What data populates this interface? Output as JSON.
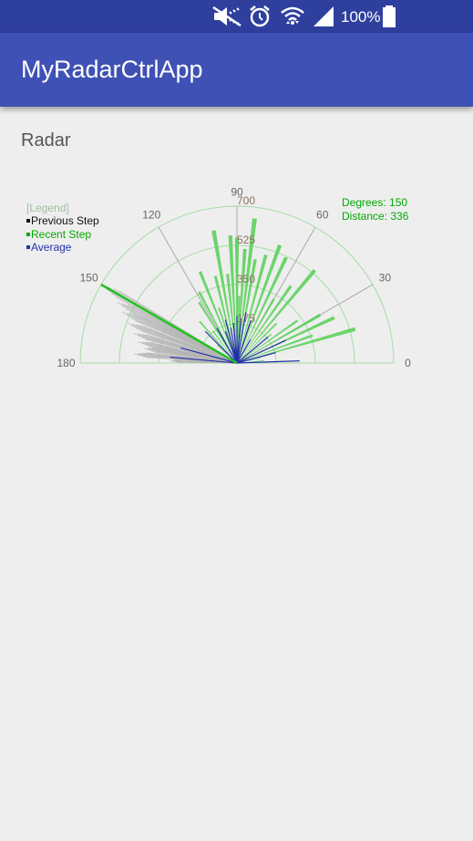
{
  "status_bar": {
    "battery_percent": "100%",
    "icons": [
      "mute-icon",
      "alarm-icon",
      "wifi-icon",
      "signal-icon",
      "battery-icon"
    ]
  },
  "app_bar": {
    "title": "MyRadarCtrlApp"
  },
  "section_label": "Radar",
  "radar": {
    "legend": {
      "title": "[Legend]",
      "items": [
        {
          "label": "Previous Step",
          "color": "#111111"
        },
        {
          "label": "Recent Step",
          "color": "#00aa00"
        },
        {
          "label": "Average",
          "color": "#2233aa"
        }
      ]
    },
    "readout": {
      "degrees": "Degrees: 150",
      "distance": "Distance: 336"
    },
    "angle_labels": [
      "180",
      "150",
      "120",
      "90",
      "60",
      "30",
      "0"
    ],
    "distance_labels": [
      "700",
      "525",
      "350",
      "175"
    ],
    "colors": {
      "grid": "#a5dca5",
      "recent": "#5cd15c",
      "previous": "#b5b5b5",
      "average": "#2230a8",
      "sweep": "#22c322"
    }
  },
  "chart_data": {
    "type": "radar-sweep",
    "title": "Radar",
    "angle_range": [
      0,
      180
    ],
    "distance_range": [
      0,
      700
    ],
    "angle_ticks": [
      0,
      30,
      60,
      90,
      120,
      150,
      180
    ],
    "distance_ticks": [
      175,
      350,
      525,
      700
    ],
    "current_angle": 150,
    "current_distance": 336,
    "recent_step": [
      [
        5,
        120
      ],
      [
        12,
        110
      ],
      [
        16,
        550
      ],
      [
        20,
        360
      ],
      [
        25,
        480
      ],
      [
        30,
        430
      ],
      [
        35,
        330
      ],
      [
        40,
        200
      ],
      [
        45,
        250
      ],
      [
        50,
        540
      ],
      [
        55,
        420
      ],
      [
        60,
        330
      ],
      [
        65,
        520
      ],
      [
        70,
        560
      ],
      [
        75,
        500
      ],
      [
        80,
        470
      ],
      [
        83,
        650
      ],
      [
        86,
        510
      ],
      [
        88,
        300
      ],
      [
        90,
        560
      ],
      [
        93,
        570
      ],
      [
        96,
        400
      ],
      [
        100,
        600
      ],
      [
        104,
        400
      ],
      [
        108,
        260
      ],
      [
        112,
        440
      ],
      [
        118,
        360
      ],
      [
        122,
        320
      ],
      [
        127,
        180
      ],
      [
        132,
        250
      ],
      [
        138,
        120
      ]
    ],
    "previous_step": [
      [
        150,
        700
      ],
      [
        153,
        600
      ],
      [
        156,
        560
      ],
      [
        160,
        520
      ],
      [
        164,
        480
      ],
      [
        168,
        450
      ],
      [
        171,
        420
      ],
      [
        175,
        460
      ],
      [
        178,
        300
      ]
    ],
    "average": [
      [
        2,
        280
      ],
      [
        15,
        180
      ],
      [
        25,
        240
      ],
      [
        40,
        180
      ],
      [
        60,
        120
      ],
      [
        72,
        200
      ],
      [
        80,
        230
      ],
      [
        85,
        200
      ],
      [
        90,
        210
      ],
      [
        95,
        180
      ],
      [
        100,
        160
      ],
      [
        105,
        200
      ],
      [
        110,
        150
      ],
      [
        120,
        180
      ],
      [
        135,
        200
      ],
      [
        150,
        150
      ],
      [
        165,
        260
      ],
      [
        175,
        300
      ]
    ]
  }
}
